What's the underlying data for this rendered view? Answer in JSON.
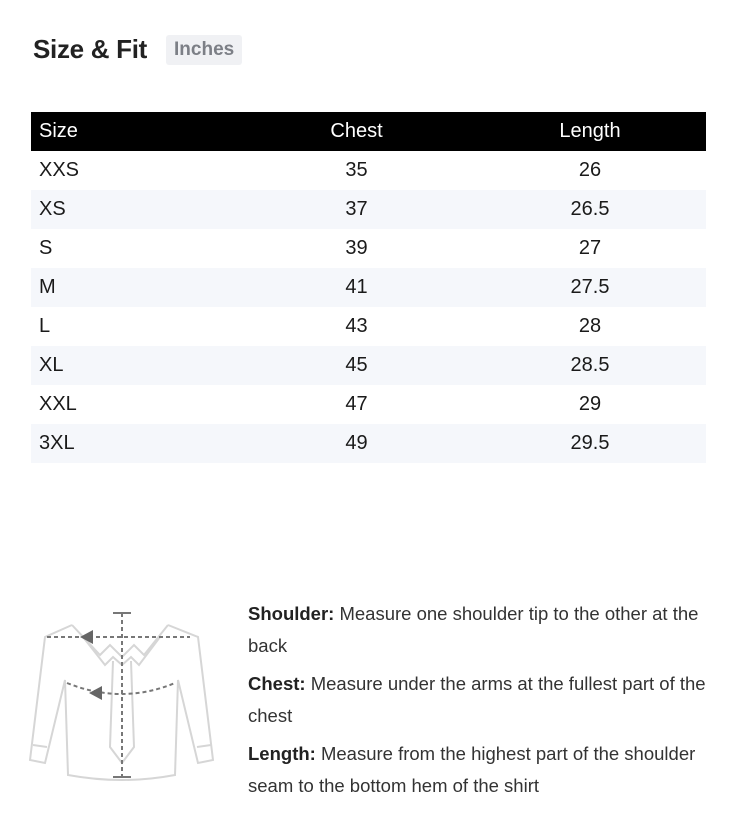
{
  "header": {
    "title": "Size & Fit",
    "unit": "Inches"
  },
  "table": {
    "columns": [
      "Size",
      "Chest",
      "Length"
    ],
    "rows": [
      [
        "XXS",
        "35",
        "26"
      ],
      [
        "XS",
        "37",
        "26.5"
      ],
      [
        "S",
        "39",
        "27"
      ],
      [
        "M",
        "41",
        "27.5"
      ],
      [
        "L",
        "43",
        "28"
      ],
      [
        "XL",
        "45",
        "28.5"
      ],
      [
        "XXL",
        "47",
        "29"
      ],
      [
        "3XL",
        "49",
        "29.5"
      ]
    ]
  },
  "guide": [
    {
      "label": "Shoulder:",
      "text": " Measure one shoulder tip to the other at the back"
    },
    {
      "label": "Chest:",
      "text": " Measure under the arms at the fullest part of the chest"
    },
    {
      "label": "Length:",
      "text": " Measure from the highest part of the shoulder seam to the bottom hem of the shirt"
    }
  ],
  "icons": {
    "diagram": "shirt-measurement-diagram"
  }
}
